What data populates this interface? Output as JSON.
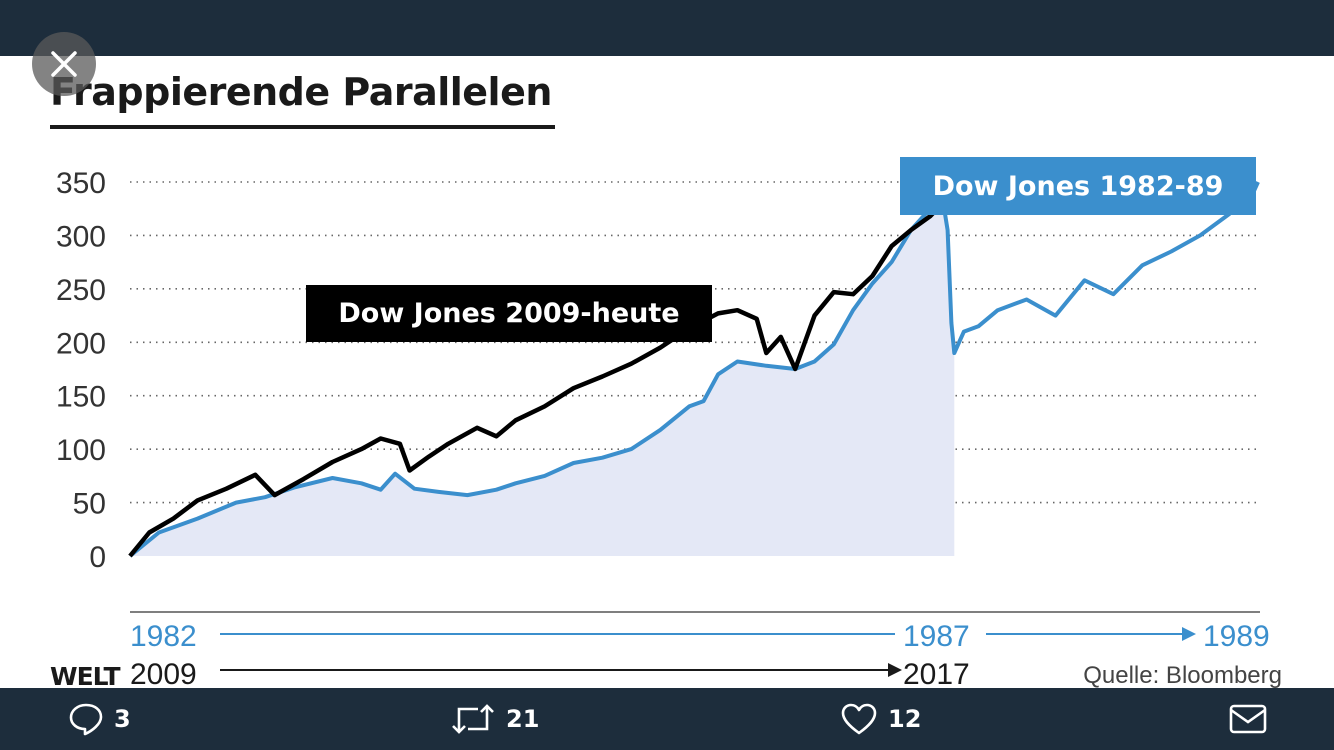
{
  "tweet": {
    "actions": {
      "replies": "3",
      "retweets": "21",
      "likes": "12"
    }
  },
  "chart_data": {
    "type": "line",
    "title": "Frappierende Parallelen",
    "ylim": [
      0,
      350
    ],
    "yticks": [
      "0",
      "50",
      "100",
      "150",
      "200",
      "250",
      "300",
      "350"
    ],
    "grid": "horizontal dotted",
    "x_axes": [
      {
        "color": "#3b8fcd",
        "start": "1982",
        "mid": "1987",
        "end": "1989"
      },
      {
        "color": "#1a1a1a",
        "start": "2009",
        "end": "2017"
      }
    ],
    "series": [
      {
        "name": "Dow Jones 2009-heute",
        "color": "#000000",
        "fill": false,
        "points": [
          [
            0,
            0
          ],
          [
            0.2,
            22
          ],
          [
            0.45,
            35
          ],
          [
            0.7,
            52
          ],
          [
            1.0,
            63
          ],
          [
            1.3,
            76
          ],
          [
            1.5,
            57
          ],
          [
            1.8,
            72
          ],
          [
            2.1,
            88
          ],
          [
            2.4,
            100
          ],
          [
            2.6,
            110
          ],
          [
            2.8,
            105
          ],
          [
            2.9,
            80
          ],
          [
            3.1,
            93
          ],
          [
            3.3,
            105
          ],
          [
            3.6,
            120
          ],
          [
            3.8,
            112
          ],
          [
            4.0,
            127
          ],
          [
            4.3,
            140
          ],
          [
            4.6,
            157
          ],
          [
            4.9,
            168
          ],
          [
            5.2,
            180
          ],
          [
            5.5,
            195
          ],
          [
            5.8,
            213
          ],
          [
            6.1,
            227
          ],
          [
            6.3,
            230
          ],
          [
            6.5,
            222
          ],
          [
            6.6,
            190
          ],
          [
            6.75,
            205
          ],
          [
            6.9,
            175
          ],
          [
            7.1,
            225
          ],
          [
            7.3,
            247
          ],
          [
            7.5,
            245
          ],
          [
            7.7,
            262
          ],
          [
            7.9,
            290
          ],
          [
            8.1,
            305
          ],
          [
            8.3,
            318
          ],
          [
            8.45,
            332
          ],
          [
            8.5,
            342
          ]
        ]
      },
      {
        "name": "Dow Jones 1982-89",
        "color": "#3b8fcd",
        "fill": true,
        "points": [
          [
            0,
            0
          ],
          [
            0.3,
            22
          ],
          [
            0.7,
            35
          ],
          [
            1.1,
            50
          ],
          [
            1.4,
            55
          ],
          [
            1.7,
            64
          ],
          [
            2.1,
            73
          ],
          [
            2.4,
            68
          ],
          [
            2.6,
            62
          ],
          [
            2.75,
            77
          ],
          [
            2.95,
            63
          ],
          [
            3.2,
            60
          ],
          [
            3.5,
            57
          ],
          [
            3.8,
            62
          ],
          [
            4.0,
            68
          ],
          [
            4.3,
            75
          ],
          [
            4.6,
            87
          ],
          [
            4.9,
            92
          ],
          [
            5.2,
            100
          ],
          [
            5.5,
            118
          ],
          [
            5.8,
            140
          ],
          [
            5.95,
            145
          ],
          [
            6.1,
            170
          ],
          [
            6.3,
            182
          ],
          [
            6.6,
            178
          ],
          [
            6.9,
            175
          ],
          [
            7.1,
            182
          ],
          [
            7.3,
            198
          ],
          [
            7.5,
            230
          ],
          [
            7.7,
            255
          ],
          [
            7.9,
            275
          ],
          [
            8.1,
            305
          ],
          [
            8.3,
            325
          ],
          [
            8.4,
            338
          ],
          [
            8.45,
            322
          ],
          [
            8.48,
            305
          ],
          [
            8.52,
            218
          ],
          [
            8.55,
            190
          ],
          [
            8.65,
            210
          ],
          [
            8.8,
            215
          ],
          [
            9.0,
            230
          ],
          [
            9.3,
            240
          ],
          [
            9.6,
            225
          ],
          [
            9.9,
            258
          ],
          [
            10.2,
            245
          ],
          [
            10.5,
            272
          ],
          [
            10.8,
            285
          ],
          [
            11.1,
            300
          ],
          [
            11.4,
            320
          ],
          [
            11.55,
            332
          ],
          [
            11.65,
            340
          ],
          [
            11.7,
            350
          ]
        ]
      }
    ],
    "source": "Quelle: Bloomberg",
    "publisher": "WELT"
  }
}
